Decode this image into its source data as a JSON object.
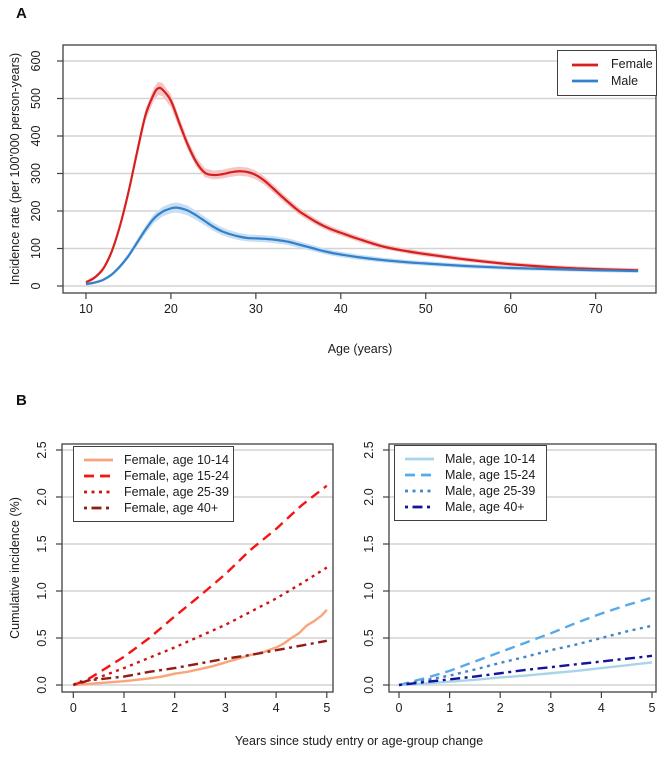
{
  "figure": {
    "panelA_label": "A",
    "panelB_label": "B"
  },
  "chart_data": [
    {
      "id": "panel-a",
      "type": "line",
      "smooth": true,
      "xlabel": "Age (years)",
      "ylabel": "Incidence rate (per 100'000 person-years)",
      "xlim": [
        7.3,
        77.1
      ],
      "ylim": [
        0,
        600
      ],
      "grid": "horizontal",
      "legend_position": "top-right",
      "x_ticks": {
        "values": [
          10,
          20,
          30,
          40,
          50,
          60,
          70
        ],
        "labels": [
          "10",
          "20",
          "30",
          "40",
          "50",
          "60",
          "70"
        ]
      },
      "y_ticks": {
        "values": [
          0,
          100,
          200,
          300,
          400,
          500,
          600
        ],
        "labels": [
          "0",
          "100",
          "200",
          "300",
          "400",
          "500",
          "600"
        ]
      },
      "series": [
        {
          "name": "Female",
          "color": "#d81f1f",
          "style": "solid",
          "band": {
            "base": 4,
            "frac": 0.026,
            "color": "#f5c6c6"
          },
          "x": [
            10,
            11,
            12,
            13,
            14,
            15,
            16,
            17,
            18,
            18.5,
            19,
            20,
            21,
            22,
            23,
            24,
            25,
            26,
            27,
            28,
            29,
            30,
            31,
            32,
            33,
            34,
            35,
            36,
            37,
            38,
            39,
            40,
            42,
            45,
            48,
            50,
            55,
            60,
            65,
            70,
            75
          ],
          "y": [
            10,
            22,
            45,
            90,
            160,
            250,
            355,
            455,
            512,
            527,
            524,
            494,
            434,
            376,
            330,
            302,
            296,
            298,
            303,
            306,
            304,
            296,
            281,
            261,
            240,
            220,
            201,
            186,
            172,
            160,
            150,
            142,
            126,
            105,
            92,
            85,
            70,
            58,
            50,
            45,
            42
          ]
        },
        {
          "name": "Male",
          "color": "#3380cc",
          "style": "solid",
          "band": {
            "base": 3,
            "frac": 0.05,
            "color": "#c8def2"
          },
          "x": [
            10,
            11,
            12,
            13,
            14,
            15,
            16,
            17,
            18,
            19,
            20,
            20.5,
            21,
            22,
            23,
            24,
            25,
            26,
            27,
            28,
            29,
            30,
            31,
            32,
            33,
            34,
            35,
            36,
            37,
            38,
            39,
            40,
            42,
            45,
            48,
            50,
            55,
            60,
            65,
            70,
            75
          ],
          "y": [
            5,
            9,
            16,
            30,
            52,
            80,
            115,
            150,
            180,
            198,
            207,
            209,
            208,
            201,
            188,
            173,
            158,
            146,
            138,
            132,
            128,
            127,
            126,
            124,
            121,
            117,
            111,
            105,
            99,
            93,
            88,
            84,
            77,
            69,
            63,
            60,
            53,
            48,
            45,
            42,
            40
          ]
        }
      ]
    },
    {
      "id": "panel-b-female",
      "type": "line",
      "smooth": false,
      "xlabel": "Years since study entry or age-group change",
      "ylabel": "Cumulative incidence (%)",
      "xlim": [
        -0.2,
        5.2
      ],
      "ylim": [
        0,
        2.5
      ],
      "grid": "horizontal",
      "legend_position": "top-left",
      "x_ticks": {
        "values": [
          0,
          1,
          2,
          3,
          4,
          5
        ],
        "labels": [
          "0",
          "1",
          "2",
          "3",
          "4",
          "5"
        ]
      },
      "y_ticks": {
        "values": [
          0,
          0.5,
          1,
          1.5,
          2,
          2.5
        ],
        "labels": [
          "0.0",
          "0.5",
          "1.0",
          "1.5",
          "2.0",
          "2.5"
        ]
      },
      "series": [
        {
          "name": "Female, age 10-14",
          "color": "#f9a57c",
          "style": "solid",
          "x": [
            0,
            0.25,
            0.5,
            0.75,
            1,
            1.25,
            1.5,
            1.75,
            2,
            2.25,
            2.5,
            2.75,
            3,
            3.25,
            3.5,
            3.75,
            4,
            4.15,
            4.3,
            4.45,
            4.6,
            4.75,
            4.9,
            5
          ],
          "y": [
            0,
            0.01,
            0.02,
            0.03,
            0.04,
            0.055,
            0.07,
            0.09,
            0.12,
            0.14,
            0.17,
            0.2,
            0.24,
            0.28,
            0.32,
            0.35,
            0.4,
            0.44,
            0.5,
            0.55,
            0.63,
            0.68,
            0.74,
            0.8
          ]
        },
        {
          "name": "Female, age 15-24",
          "color": "#f51313",
          "style": "dashed",
          "x": [
            0,
            0.25,
            0.5,
            1,
            1.5,
            2,
            2.5,
            3,
            3.5,
            4,
            4.5,
            5
          ],
          "y": [
            0,
            0.05,
            0.13,
            0.3,
            0.5,
            0.73,
            0.95,
            1.18,
            1.44,
            1.66,
            1.91,
            2.12
          ]
        },
        {
          "name": "Female, age 25-39",
          "color": "#ce1414",
          "style": "dotted",
          "x": [
            0,
            0.25,
            0.5,
            1,
            1.5,
            2,
            2.5,
            3,
            3.5,
            4,
            4.5,
            5
          ],
          "y": [
            0,
            0.04,
            0.08,
            0.18,
            0.29,
            0.4,
            0.52,
            0.64,
            0.78,
            0.92,
            1.08,
            1.25
          ]
        },
        {
          "name": "Female, age 40+",
          "color": "#8e1d15",
          "style": "dashdot",
          "x": [
            0,
            0.12,
            0.2,
            0.3,
            0.5,
            1,
            1.5,
            2,
            2.5,
            3,
            3.5,
            4,
            4.5,
            5
          ],
          "y": [
            0,
            0.04,
            0.03,
            0.05,
            0.06,
            0.09,
            0.14,
            0.18,
            0.23,
            0.28,
            0.32,
            0.37,
            0.42,
            0.47
          ]
        }
      ]
    },
    {
      "id": "panel-b-male",
      "type": "line",
      "smooth": false,
      "ylim": [
        0,
        2.5
      ],
      "xlim": [
        -0.2,
        5.2
      ],
      "grid": "horizontal",
      "legend_position": "top-left",
      "x_ticks": {
        "values": [
          0,
          1,
          2,
          3,
          4,
          5
        ],
        "labels": [
          "0",
          "1",
          "2",
          "3",
          "4",
          "5"
        ]
      },
      "y_ticks": {
        "values": [
          0,
          0.5,
          1,
          1.5,
          2,
          2.5
        ],
        "labels": [
          "0.0",
          "0.5",
          "1.0",
          "1.5",
          "2.0",
          "2.5"
        ]
      },
      "series": [
        {
          "name": "Male, age 10-14",
          "color": "#a9d5e8",
          "style": "solid",
          "x": [
            0,
            0.5,
            1,
            1.5,
            2,
            2.5,
            3,
            3.5,
            4,
            4.5,
            5
          ],
          "y": [
            0,
            0.015,
            0.035,
            0.055,
            0.08,
            0.1,
            0.125,
            0.15,
            0.18,
            0.21,
            0.24
          ]
        },
        {
          "name": "Male, age 15-24",
          "color": "#56aae8",
          "style": "dashed",
          "x": [
            0,
            0.5,
            1,
            1.5,
            2,
            2.5,
            3,
            3.5,
            4,
            4.5,
            5
          ],
          "y": [
            0,
            0.07,
            0.15,
            0.25,
            0.35,
            0.45,
            0.55,
            0.66,
            0.76,
            0.85,
            0.93
          ]
        },
        {
          "name": "Male, age 25-39",
          "color": "#4484c8",
          "style": "dotted",
          "x": [
            0,
            0.5,
            1,
            1.5,
            2,
            2.5,
            3,
            3.5,
            4,
            4.5,
            5
          ],
          "y": [
            0,
            0.05,
            0.1,
            0.165,
            0.235,
            0.3,
            0.37,
            0.43,
            0.5,
            0.57,
            0.63
          ]
        },
        {
          "name": "Male, age 40+",
          "color": "#14149b",
          "style": "dashdot",
          "x": [
            0,
            0.5,
            1,
            1.5,
            2,
            2.5,
            3,
            3.5,
            4,
            4.5,
            5
          ],
          "y": [
            0,
            0.03,
            0.06,
            0.09,
            0.125,
            0.16,
            0.19,
            0.22,
            0.25,
            0.28,
            0.31
          ]
        }
      ]
    }
  ]
}
